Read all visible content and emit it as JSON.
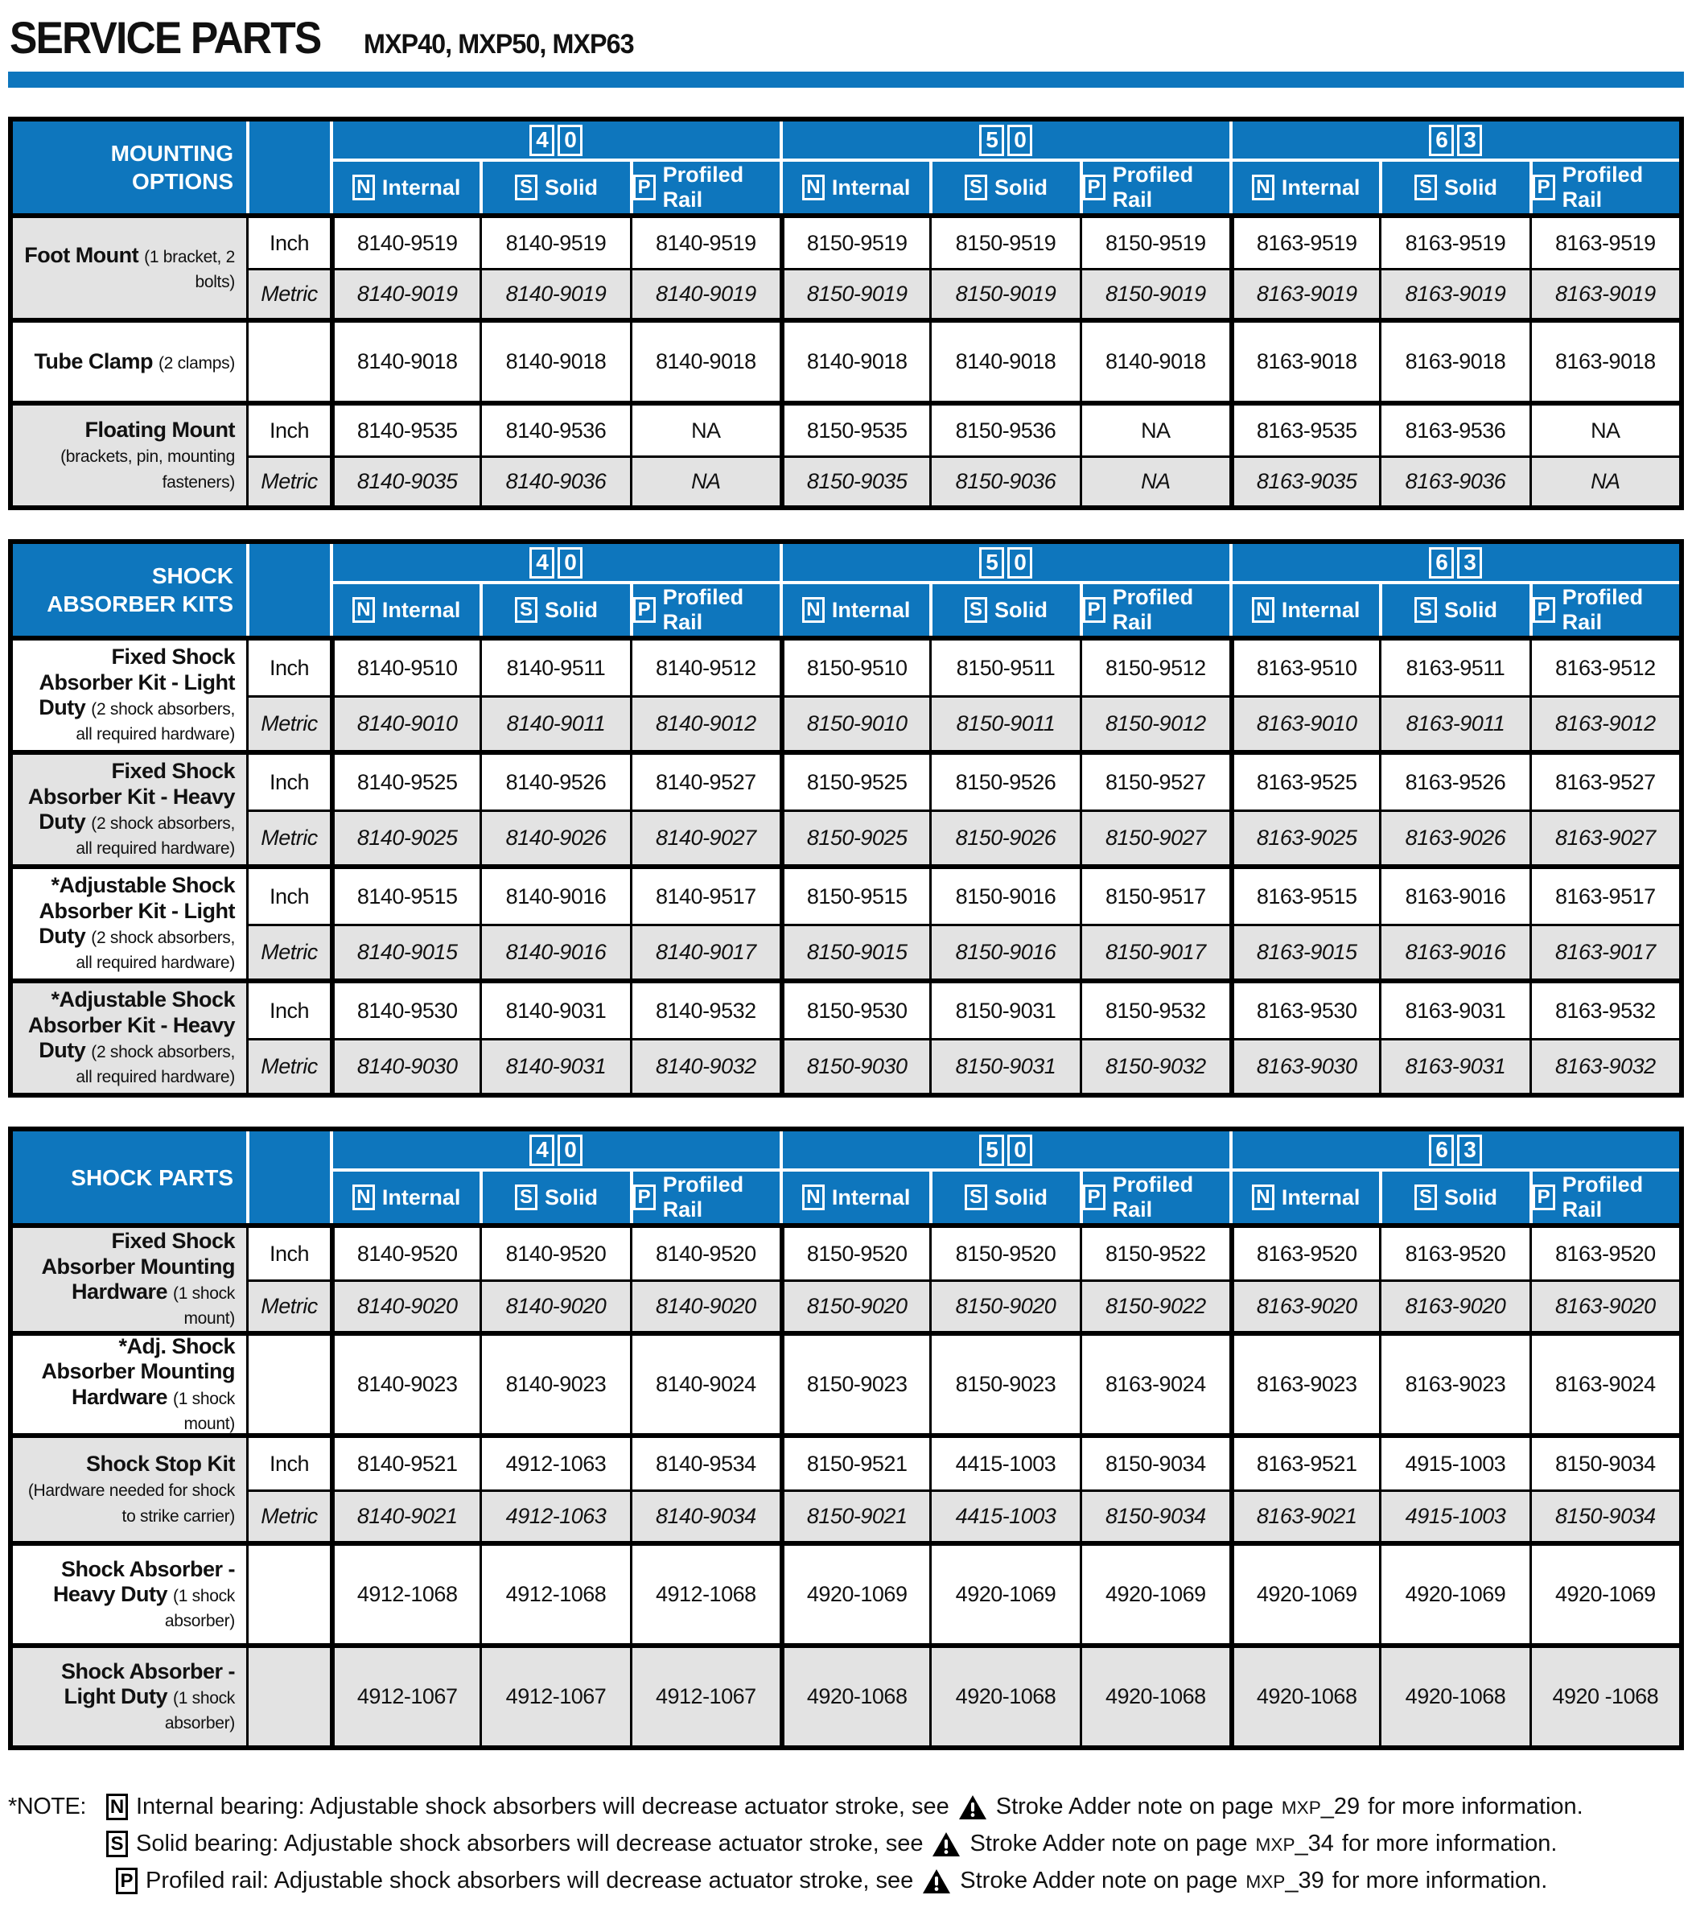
{
  "page": {
    "title": "SERVICE PARTS",
    "subtitle": "MXP40, MXP50, MXP63"
  },
  "colors": {
    "header_blue": "#0e76bd",
    "shaded_row_gray": "#e3e3e3"
  },
  "columns": {
    "groups": [
      {
        "digits": [
          "4",
          "0"
        ]
      },
      {
        "digits": [
          "5",
          "0"
        ]
      },
      {
        "digits": [
          "6",
          "3"
        ]
      }
    ],
    "subcolumns": [
      {
        "letter": "N",
        "label": "Internal"
      },
      {
        "letter": "S",
        "label": "Solid"
      },
      {
        "letter": "P",
        "label": "Profiled Rail"
      }
    ]
  },
  "tables": [
    {
      "title_lines": [
        "MOUNTING OPTIONS"
      ],
      "row_groups": [
        {
          "label": "Foot Mount",
          "sublabel": "(1 bracket, 2 bolts)",
          "label_shaded": true,
          "rows": [
            {
              "unit": "Inch",
              "shaded": false,
              "values": [
                "8140-9519",
                "8140-9519",
                "8140-9519",
                "8150-9519",
                "8150-9519",
                "8150-9519",
                "8163-9519",
                "8163-9519",
                "8163-9519"
              ]
            },
            {
              "unit": "Metric",
              "shaded": true,
              "values": [
                "8140-9019",
                "8140-9019",
                "8140-9019",
                "8150-9019",
                "8150-9019",
                "8150-9019",
                "8163-9019",
                "8163-9019",
                "8163-9019"
              ]
            }
          ]
        },
        {
          "label": "Tube Clamp",
          "sublabel": "(2 clamps)",
          "label_shaded": false,
          "rows": [
            {
              "unit": "",
              "shaded": false,
              "values": [
                "8140-9018",
                "8140-9018",
                "8140-9018",
                "8140-9018",
                "8140-9018",
                "8140-9018",
                "8163-9018",
                "8163-9018",
                "8163-9018"
              ]
            }
          ]
        },
        {
          "label": "Floating Mount",
          "sublabel": "(brackets, pin, mounting fasteners)",
          "label_shaded": true,
          "rows": [
            {
              "unit": "Inch",
              "shaded": false,
              "values": [
                "8140-9535",
                "8140-9536",
                "NA",
                "8150-9535",
                "8150-9536",
                "NA",
                "8163-9535",
                "8163-9536",
                "NA"
              ]
            },
            {
              "unit": "Metric",
              "shaded": true,
              "values": [
                "8140-9035",
                "8140-9036",
                "NA",
                "8150-9035",
                "8150-9036",
                "NA",
                "8163-9035",
                "8163-9036",
                "NA"
              ]
            }
          ]
        }
      ]
    },
    {
      "title_lines": [
        "SHOCK",
        "ABSORBER KITS"
      ],
      "row_groups": [
        {
          "label": "Fixed Shock Absorber Kit - Light Duty",
          "sublabel": "(2 shock absorbers, all required hardware)",
          "label_shaded": false,
          "rows": [
            {
              "unit": "Inch",
              "shaded": false,
              "values": [
                "8140-9510",
                "8140-9511",
                "8140-9512",
                "8150-9510",
                "8150-9511",
                "8150-9512",
                "8163-9510",
                "8163-9511",
                "8163-9512"
              ]
            },
            {
              "unit": "Metric",
              "shaded": true,
              "values": [
                "8140-9010",
                "8140-9011",
                "8140-9012",
                "8150-9010",
                "8150-9011",
                "8150-9012",
                "8163-9010",
                "8163-9011",
                "8163-9012"
              ]
            }
          ]
        },
        {
          "label": "Fixed Shock Absorber Kit - Heavy Duty",
          "sublabel": "(2 shock absorbers, all required hardware)",
          "label_shaded": true,
          "rows": [
            {
              "unit": "Inch",
              "shaded": false,
              "values": [
                "8140-9525",
                "8140-9526",
                "8140-9527",
                "8150-9525",
                "8150-9526",
                "8150-9527",
                "8163-9525",
                "8163-9526",
                "8163-9527"
              ]
            },
            {
              "unit": "Metric",
              "shaded": true,
              "values": [
                "8140-9025",
                "8140-9026",
                "8140-9027",
                "8150-9025",
                "8150-9026",
                "8150-9027",
                "8163-9025",
                "8163-9026",
                "8163-9027"
              ]
            }
          ]
        },
        {
          "label": "*Adjustable Shock Absorber Kit - Light Duty",
          "sublabel": "(2 shock absorbers, all required hardware)",
          "label_shaded": false,
          "rows": [
            {
              "unit": "Inch",
              "shaded": false,
              "values": [
                "8140-9515",
                "8140-9016",
                "8140-9517",
                "8150-9515",
                "8150-9016",
                "8150-9517",
                "8163-9515",
                "8163-9016",
                "8163-9517"
              ]
            },
            {
              "unit": "Metric",
              "shaded": true,
              "values": [
                "8140-9015",
                "8140-9016",
                "8140-9017",
                "8150-9015",
                "8150-9016",
                "8150-9017",
                "8163-9015",
                "8163-9016",
                "8163-9017"
              ]
            }
          ]
        },
        {
          "label": "*Adjustable Shock Absorber Kit - Heavy Duty",
          "sublabel": "(2 shock absorbers, all required hardware)",
          "label_shaded": true,
          "rows": [
            {
              "unit": "Inch",
              "shaded": false,
              "values": [
                "8140-9530",
                "8140-9031",
                "8140-9532",
                "8150-9530",
                "8150-9031",
                "8150-9532",
                "8163-9530",
                "8163-9031",
                "8163-9532"
              ]
            },
            {
              "unit": "Metric",
              "shaded": true,
              "values": [
                "8140-9030",
                "8140-9031",
                "8140-9032",
                "8150-9030",
                "8150-9031",
                "8150-9032",
                "8163-9030",
                "8163-9031",
                "8163-9032"
              ]
            }
          ]
        }
      ]
    },
    {
      "title_lines": [
        "SHOCK PARTS"
      ],
      "row_groups": [
        {
          "label": "Fixed Shock Absorber Mounting Hardware",
          "sublabel": "(1 shock mount)",
          "label_shaded": true,
          "rows": [
            {
              "unit": "Inch",
              "shaded": false,
              "values": [
                "8140-9520",
                "8140-9520",
                "8140-9520",
                "8150-9520",
                "8150-9520",
                "8150-9522",
                "8163-9520",
                "8163-9520",
                "8163-9520"
              ]
            },
            {
              "unit": "Metric",
              "shaded": true,
              "values": [
                "8140-9020",
                "8140-9020",
                "8140-9020",
                "8150-9020",
                "8150-9020",
                "8150-9022",
                "8163-9020",
                "8163-9020",
                "8163-9020"
              ]
            }
          ]
        },
        {
          "label": "*Adj. Shock Absorber Mounting Hardware",
          "sublabel": "(1 shock mount)",
          "label_shaded": false,
          "rows": [
            {
              "unit": "",
              "shaded": false,
              "values": [
                "8140-9023",
                "8140-9023",
                "8140-9024",
                "8150-9023",
                "8150-9023",
                "8163-9024",
                "8163-9023",
                "8163-9023",
                "8163-9024"
              ]
            }
          ]
        },
        {
          "label": "Shock Stop Kit",
          "sublabel": "(Hardware needed for shock to strike carrier)",
          "label_shaded": true,
          "rows": [
            {
              "unit": "Inch",
              "shaded": false,
              "values": [
                "8140-9521",
                "4912-1063",
                "8140-9534",
                "8150-9521",
                "4415-1003",
                "8150-9034",
                "8163-9521",
                "4915-1003",
                "8150-9034"
              ]
            },
            {
              "unit": "Metric",
              "shaded": true,
              "values": [
                "8140-9021",
                "4912-1063",
                "8140-9034",
                "8150-9021",
                "4415-1003",
                "8150-9034",
                "8163-9021",
                "4915-1003",
                "8150-9034"
              ]
            }
          ]
        },
        {
          "label": "Shock Absorber - Heavy Duty",
          "sublabel": "(1 shock absorber)",
          "label_shaded": false,
          "rows": [
            {
              "unit": "",
              "shaded": false,
              "values": [
                "4912-1068",
                "4912-1068",
                "4912-1068",
                "4920-1069",
                "4920-1069",
                "4920-1069",
                "4920-1069",
                "4920-1069",
                "4920-1069"
              ]
            }
          ]
        },
        {
          "label": "Shock Absorber - Light Duty",
          "sublabel": "(1 shock absorber)",
          "label_shaded": true,
          "rows": [
            {
              "unit": "",
              "shaded": true,
              "values": [
                "4912-1067",
                "4912-1067",
                "4912-1067",
                "4920-1068",
                "4920-1068",
                "4920-1068",
                "4920-1068",
                "4920-1068",
                "4920 -1068"
              ]
            }
          ]
        }
      ]
    }
  ],
  "notes": {
    "label": "*NOTE:",
    "items": [
      {
        "letter": "N",
        "before": "Internal bearing: Adjustable shock absorbers will decrease actuator stroke, see",
        "middle": "Stroke Adder note on page",
        "page_small": "MXP",
        "page_rest": "_29",
        "end": "for more information."
      },
      {
        "letter": "S",
        "before": "Solid bearing: Adjustable shock absorbers will decrease actuator stroke, see",
        "middle": "Stroke Adder note on page",
        "page_small": "MXP",
        "page_rest": "_34",
        "end": "for more information."
      },
      {
        "letter": "P",
        "before": "Profiled rail: Adjustable shock absorbers will decrease actuator stroke, see",
        "middle": "Stroke Adder note on page",
        "page_small": "MXP",
        "page_rest": "_39",
        "end": "for more information."
      }
    ]
  }
}
